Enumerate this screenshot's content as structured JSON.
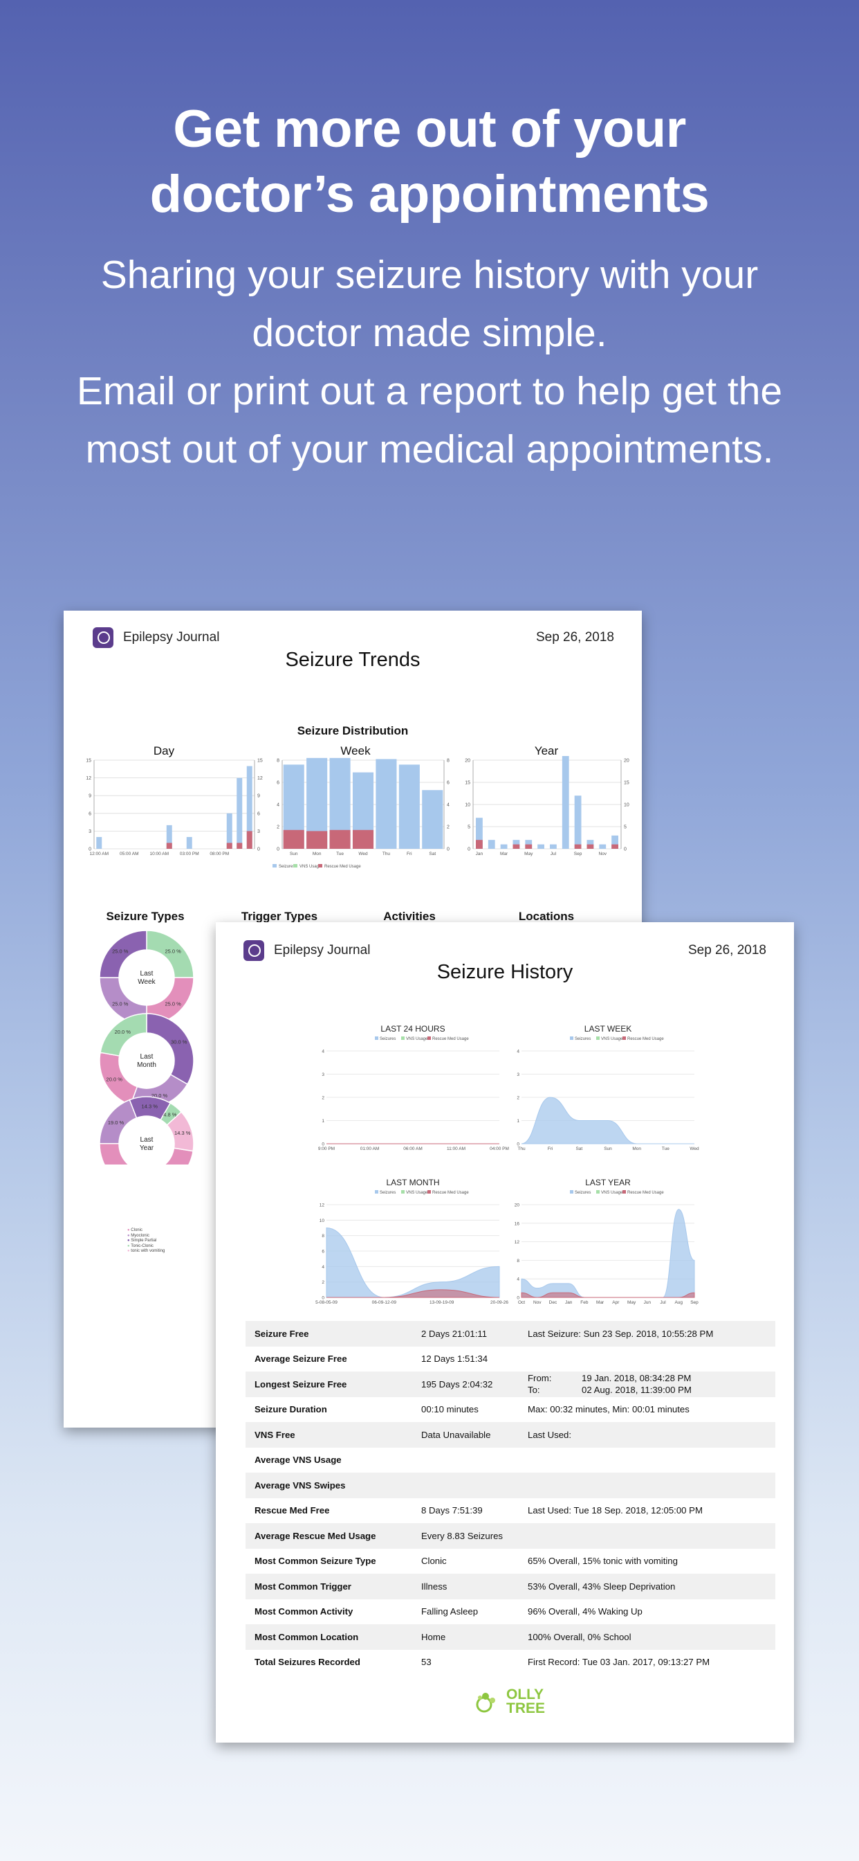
{
  "hero": {
    "title_line1": "Get more out of your",
    "title_line2": "doctor’s appointments",
    "sub_line1": "Sharing your seizure history with your",
    "sub_line2": "doctor made simple.",
    "sub_line3": "Email or print out a report to help get the",
    "sub_line4": "most out of your medical appointments."
  },
  "colors": {
    "seizures": "#a7c8ec",
    "vns": "#a6dfa8",
    "rescue": "#c86878",
    "purple": "#8a62b0",
    "pink": "#e38fbb",
    "green": "#a4dbb1",
    "brand": "#5b3c8c",
    "olly": "#8dc63f"
  },
  "trends_report": {
    "brand": "Epilepsy Journal",
    "date": "Sep 26, 2018",
    "title": "Seizure Trends",
    "distribution_title": "Seizure Distribution",
    "panels": [
      "Day",
      "Week",
      "Year"
    ],
    "legend": [
      "Seizures",
      "VNS Usage",
      "Rescue Med Usage"
    ],
    "sections": [
      "Seizure Types",
      "Trigger Types",
      "Activities",
      "Locations"
    ],
    "donut_centers": [
      "Last\nWeek",
      "Last\nMonth",
      "Last\nYear"
    ],
    "donut_legend": [
      "Clonic",
      "Myoclonic",
      "Simple Partial",
      "Tonic-Clonic",
      "tonic with vomiting"
    ]
  },
  "history_report": {
    "brand": "Epilepsy Journal",
    "date": "Sep 26, 2018",
    "title": "Seizure History",
    "legend": [
      "Seizures",
      "VNS Usage",
      "Rescue Med Usage"
    ],
    "rows": [
      {
        "label": "Seizure Free",
        "value": "2 Days 21:01:11",
        "detail": "Last Seizure: Sun 23 Sep. 2018, 10:55:28 PM"
      },
      {
        "label": "Average Seizure Free",
        "value": "12 Days 1:51:34",
        "detail": ""
      },
      {
        "label": "Longest Seizure Free",
        "value": "195 Days 2:04:32",
        "from_label": "From:",
        "from_value": "19 Jan. 2018, 08:34:28 PM",
        "to_label": "To:",
        "to_value": "02 Aug. 2018, 11:39:00 PM"
      },
      {
        "label": "Seizure Duration",
        "value": "00:10 minutes",
        "detail": "Max: 00:32 minutes, Min: 00:01 minutes"
      },
      {
        "label": "VNS Free",
        "value": "Data Unavailable",
        "detail": "Last Used:"
      },
      {
        "label": "Average VNS Usage",
        "value": "",
        "detail": ""
      },
      {
        "label": "Average VNS Swipes",
        "value": "",
        "detail": ""
      },
      {
        "label": "Rescue Med Free",
        "value": "8 Days 7:51:39",
        "detail": "Last Used: Tue 18 Sep. 2018, 12:05:00 PM"
      },
      {
        "label": "Average Rescue Med Usage",
        "value": "Every 8.83 Seizures",
        "detail": ""
      },
      {
        "label": "Most Common Seizure Type",
        "value": "Clonic",
        "detail": "65% Overall, 15% tonic with vomiting"
      },
      {
        "label": "Most Common Trigger",
        "value": "Illness",
        "detail": "53% Overall, 43% Sleep Deprivation"
      },
      {
        "label": "Most Common Activity",
        "value": "Falling Asleep",
        "detail": "96% Overall, 4% Waking Up"
      },
      {
        "label": "Most Common Location",
        "value": "Home",
        "detail": "100% Overall, 0% School"
      },
      {
        "label": "Total Seizures Recorded",
        "value": "53",
        "detail": "First Record: Tue 03 Jan. 2017, 09:13:27 PM"
      }
    ],
    "footer_logo_line1": "OLLY",
    "footer_logo_line2": "TREE"
  },
  "chart_data": [
    {
      "type": "bar",
      "title": "Day",
      "categories": [
        "12:00 AM",
        "",
        "",
        "05:00 AM",
        "",
        "",
        "10:00 AM",
        "",
        "",
        "03:00 PM",
        "",
        "",
        "08:00 PM",
        "",
        "",
        ""
      ],
      "series": [
        {
          "name": "Seizures",
          "values": [
            2,
            0,
            0,
            0,
            0,
            0,
            0,
            4,
            0,
            2,
            0,
            0,
            0,
            6,
            12,
            14
          ]
        },
        {
          "name": "Rescue Med Usage",
          "values": [
            0,
            0,
            0,
            0,
            0,
            0,
            0,
            1,
            0,
            0,
            0,
            0,
            0,
            1,
            1,
            3
          ]
        }
      ],
      "ylim": [
        0,
        15
      ],
      "yticks": [
        "0",
        "3",
        "6",
        "9",
        "12",
        "15"
      ]
    },
    {
      "type": "bar",
      "title": "Week",
      "categories": [
        "Sun",
        "Mon",
        "Tue",
        "Wed",
        "Thu",
        "Fri",
        "Sat"
      ],
      "series": [
        {
          "name": "Seizures",
          "values": [
            7.6,
            8.2,
            8.2,
            6.9,
            8.1,
            7.6,
            5.3
          ]
        },
        {
          "name": "Rescue Med Usage",
          "values": [
            1.7,
            1.6,
            1.7,
            1.7,
            0,
            0,
            0
          ]
        }
      ],
      "ylim": [
        0,
        8
      ],
      "yticks": [
        "0",
        "2",
        "4",
        "6",
        "8"
      ]
    },
    {
      "type": "bar",
      "title": "Year",
      "categories": [
        "Jan",
        "",
        "Mar",
        "",
        "May",
        "",
        "Jul",
        "",
        "Sep",
        "",
        "Nov",
        ""
      ],
      "series": [
        {
          "name": "Seizures",
          "values": [
            7,
            2,
            1,
            2,
            2,
            1,
            1,
            21,
            12,
            2,
            1,
            3
          ]
        },
        {
          "name": "Rescue Med Usage",
          "values": [
            2,
            0,
            0,
            1,
            1,
            0,
            0,
            0,
            1,
            1,
            0,
            1
          ]
        }
      ],
      "ylim": [
        0,
        20
      ],
      "yticks": [
        "0",
        "5",
        "10",
        "15",
        "20"
      ]
    },
    {
      "type": "pie",
      "title": "Last Week",
      "categories": [
        "Clonic",
        "Simple Partial",
        "Myoclonic",
        "Tonic-Clonic"
      ],
      "values": [
        25,
        25,
        25,
        25
      ]
    },
    {
      "type": "pie",
      "title": "Last Month",
      "categories": [
        "Myoclonic",
        "Simple Partial",
        "Clonic",
        "Tonic-Clonic"
      ],
      "values": [
        30,
        20,
        20,
        20
      ]
    },
    {
      "type": "pie",
      "title": "Last Year",
      "categories": [
        "Clonic",
        "Myoclonic",
        "Simple Partial",
        "Tonic-Clonic",
        "tonic with vomiting"
      ],
      "values": [
        47.6,
        19,
        14.3,
        4.8,
        14.3
      ]
    },
    {
      "type": "area",
      "title": "LAST 24 HOURS",
      "x": [
        "9:00 PM",
        "01:00 AM",
        "06:00 AM",
        "11:00 AM",
        "04:00 PM"
      ],
      "series": [
        {
          "name": "Seizures",
          "values": [
            0,
            0,
            0,
            0,
            0
          ]
        }
      ],
      "ylim": [
        0,
        4
      ]
    },
    {
      "type": "area",
      "title": "LAST WEEK",
      "x": [
        "Thu",
        "Fri",
        "Sat",
        "Sun",
        "Mon",
        "Tue",
        "Wed"
      ],
      "series": [
        {
          "name": "Seizures",
          "values": [
            0,
            2,
            1,
            1,
            0,
            0,
            0
          ]
        }
      ],
      "ylim": [
        0,
        4
      ]
    },
    {
      "type": "area",
      "title": "LAST MONTH",
      "x": [
        "5-08-05-09",
        "06-09-12-09",
        "13-09-19-09",
        "20-09-26"
      ],
      "series": [
        {
          "name": "Seizures",
          "values": [
            9,
            0,
            2,
            4
          ]
        },
        {
          "name": "Rescue Med Usage",
          "values": [
            0,
            0,
            1,
            0
          ]
        }
      ],
      "ylim": [
        0,
        12
      ]
    },
    {
      "type": "area",
      "title": "LAST YEAR",
      "x": [
        "Oct",
        "Nov",
        "Dec",
        "Jan",
        "Feb",
        "Mar",
        "Apr",
        "May",
        "Jun",
        "Jul",
        "Aug",
        "Sep"
      ],
      "series": [
        {
          "name": "Seizures",
          "values": [
            4,
            2,
            3,
            3,
            0,
            0,
            0,
            0,
            0,
            0,
            19,
            8
          ]
        },
        {
          "name": "Rescue Med Usage",
          "values": [
            1,
            0,
            1,
            1,
            0,
            0,
            0,
            0,
            0,
            0,
            0,
            1
          ]
        }
      ],
      "ylim": [
        0,
        20
      ]
    }
  ]
}
